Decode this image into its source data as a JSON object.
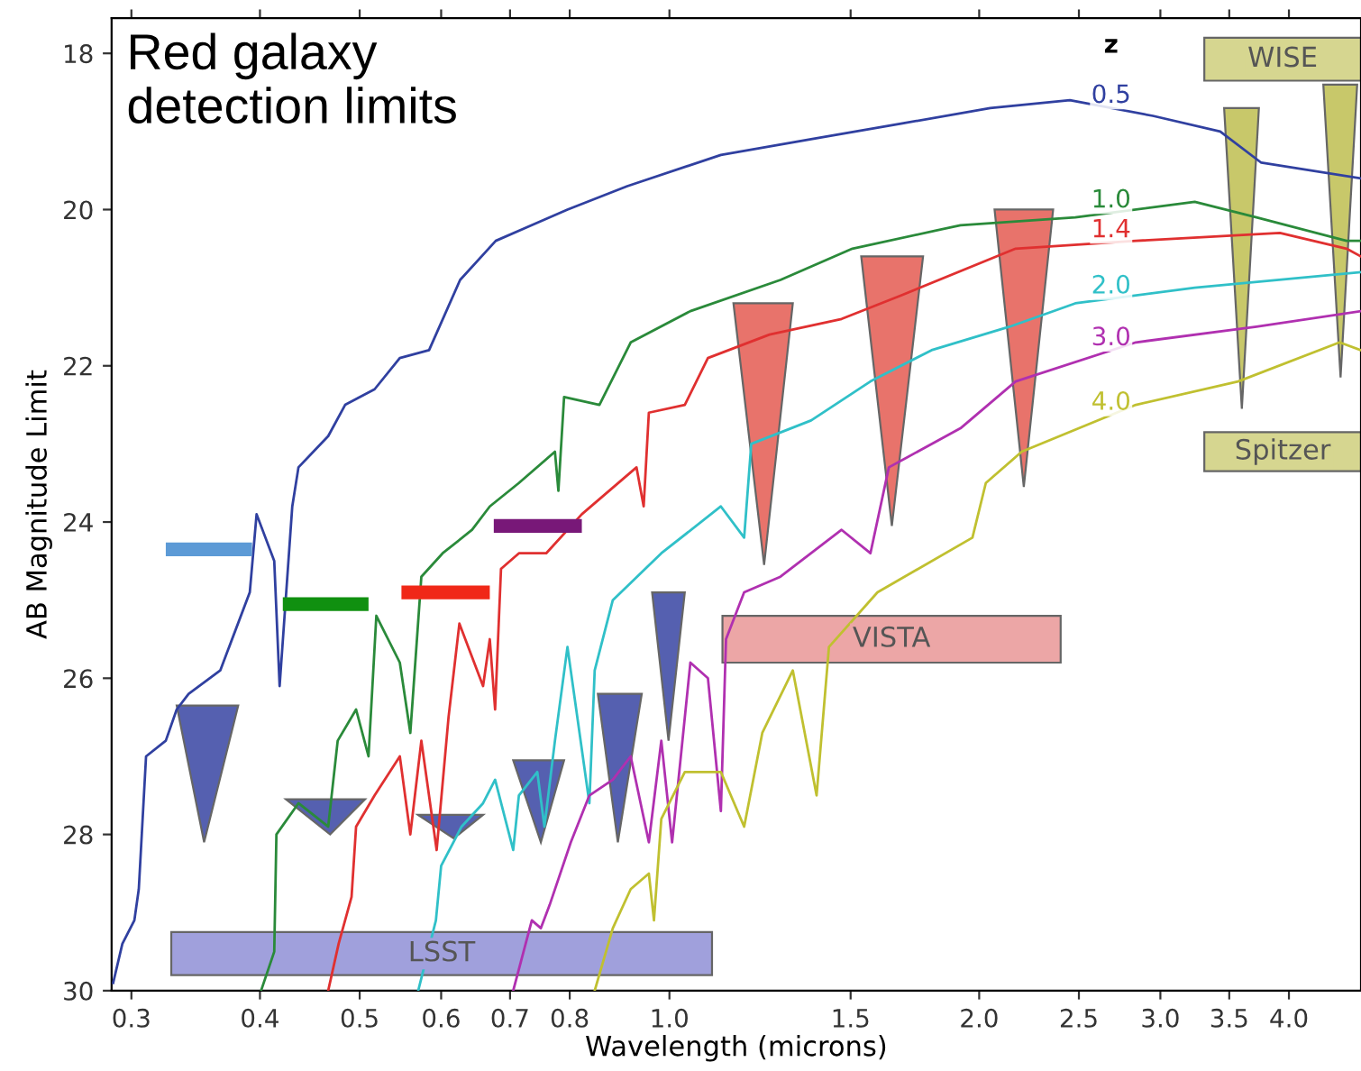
{
  "chart_data": {
    "type": "line",
    "title": "Red galaxy\ndetection limits",
    "xlabel": "Wavelength (microns)",
    "ylabel": "AB Magnitude Limit",
    "log": "x",
    "xlim": [
      0.287,
      4.7
    ],
    "ylim": [
      30,
      17.55
    ],
    "xticks": [
      0.3,
      0.4,
      0.5,
      0.6,
      0.7,
      0.8,
      {
        "value": 1,
        "label": "1.0"
      },
      1.5,
      {
        "value": 2,
        "label": "2.0"
      },
      2.5,
      {
        "value": 3,
        "label": "3.0"
      },
      3.5,
      {
        "value": 4,
        "label": "4.0"
      }
    ],
    "yticks": [
      18,
      20,
      22,
      24,
      26,
      28,
      30
    ],
    "grid": false,
    "marker": "none",
    "line_style": "solid",
    "legend_title": "z",
    "series": [
      {
        "type": "area",
        "name": "LSST",
        "color": "#a0a0dc",
        "x": [
          0.328,
          1.1,
          1.1,
          0.328
        ],
        "values": [
          29.25,
          29.25,
          29.8,
          29.8
        ]
      },
      {
        "type": "area",
        "name": "VISTA",
        "color": "#eca6a6",
        "x": [
          1.126,
          2.4,
          2.4,
          1.126
        ],
        "values": [
          25.2,
          25.2,
          25.8,
          25.8
        ]
      },
      {
        "type": "area",
        "name": "WISE",
        "color": "#d6d690",
        "x": [
          3.31,
          4.7,
          4.7,
          3.31
        ],
        "values": [
          17.8,
          17.8,
          18.35,
          18.35
        ]
      },
      {
        "type": "area",
        "name": "Spitzer",
        "color": "#d6d690",
        "x": [
          3.31,
          4.7,
          4.7,
          3.31
        ],
        "values": [
          22.85,
          22.85,
          23.35,
          23.35
        ]
      },
      {
        "name": "0.5",
        "color": "#3040a0",
        "x": [
          0.288,
          0.294,
          0.302,
          0.305,
          0.31,
          0.324,
          0.332,
          0.341,
          0.366,
          0.391,
          0.397,
          0.413,
          0.418,
          0.43,
          0.436,
          0.466,
          0.484,
          0.517,
          0.547,
          0.584,
          0.626,
          0.678,
          0.796,
          0.91,
          1.122,
          1.373,
          1.679,
          2.05,
          2.45,
          2.95,
          3.43,
          3.76,
          4.7
        ],
        "values": [
          29.9,
          29.4,
          29.1,
          28.7,
          27.0,
          26.8,
          26.4,
          26.2,
          25.9,
          24.9,
          23.9,
          24.5,
          26.1,
          23.8,
          23.3,
          22.9,
          22.5,
          22.3,
          21.9,
          21.8,
          20.9,
          20.4,
          20.0,
          19.7,
          19.3,
          19.1,
          18.9,
          18.7,
          18.6,
          18.8,
          19.0,
          19.4,
          19.6
        ]
      },
      {
        "name": "1.0",
        "color": "#2a8a3a",
        "x": [
          0.401,
          0.413,
          0.415,
          0.436,
          0.466,
          0.476,
          0.496,
          0.51,
          0.519,
          0.547,
          0.56,
          0.574,
          0.602,
          0.643,
          0.669,
          0.714,
          0.774,
          0.78,
          0.79,
          0.855,
          0.917,
          1.048,
          1.282,
          1.506,
          1.918,
          2.48,
          3.24,
          3.72,
          4.55,
          4.7
        ],
        "values": [
          30.0,
          29.5,
          28.0,
          27.6,
          27.9,
          26.8,
          26.4,
          27.0,
          25.2,
          25.8,
          26.7,
          24.7,
          24.4,
          24.1,
          23.8,
          23.5,
          23.1,
          23.6,
          22.4,
          22.5,
          21.7,
          21.3,
          20.9,
          20.5,
          20.2,
          20.1,
          19.9,
          20.1,
          20.4,
          20.4
        ]
      },
      {
        "name": "1.4",
        "color": "#e03030",
        "x": [
          0.466,
          0.477,
          0.491,
          0.496,
          0.517,
          0.547,
          0.56,
          0.574,
          0.594,
          0.61,
          0.625,
          0.659,
          0.669,
          0.677,
          0.686,
          0.714,
          0.759,
          0.822,
          0.929,
          0.944,
          0.955,
          1.035,
          1.09,
          1.251,
          1.47,
          1.679,
          2.17,
          2.84,
          3.92,
          4.55,
          4.7
        ],
        "values": [
          30.0,
          29.4,
          28.8,
          27.9,
          27.5,
          27.0,
          28.0,
          26.8,
          28.2,
          26.5,
          25.3,
          26.1,
          25.5,
          26.4,
          24.6,
          24.4,
          24.4,
          23.9,
          23.3,
          23.8,
          22.6,
          22.5,
          21.9,
          21.6,
          21.4,
          21.1,
          20.5,
          20.4,
          20.3,
          20.5,
          20.6
        ]
      },
      {
        "name": "2.0",
        "color": "#30c0c8",
        "x": [
          0.57,
          0.593,
          0.6,
          0.628,
          0.659,
          0.677,
          0.705,
          0.714,
          0.744,
          0.756,
          0.774,
          0.796,
          0.836,
          0.846,
          0.881,
          0.982,
          1.122,
          1.182,
          1.201,
          1.373,
          1.568,
          1.798,
          2.14,
          2.48,
          3.24,
          4.7
        ],
        "values": [
          30.0,
          29.1,
          28.4,
          27.9,
          27.6,
          27.3,
          28.2,
          27.5,
          27.2,
          27.9,
          26.8,
          25.6,
          27.6,
          25.9,
          25.0,
          24.4,
          23.8,
          24.2,
          23.0,
          22.7,
          22.2,
          21.8,
          21.5,
          21.2,
          21.0,
          20.8
        ]
      },
      {
        "name": "3.0",
        "color": "#b030b0",
        "x": [
          0.705,
          0.735,
          0.75,
          0.765,
          0.802,
          0.836,
          0.881,
          0.917,
          0.955,
          0.982,
          1.006,
          1.048,
          1.09,
          1.122,
          1.135,
          1.182,
          1.282,
          1.47,
          1.568,
          1.634,
          1.918,
          2.17,
          2.84,
          3.72,
          4.7
        ],
        "values": [
          30.0,
          29.1,
          29.2,
          28.9,
          28.1,
          27.5,
          27.3,
          27.0,
          28.1,
          26.8,
          28.1,
          25.8,
          26.0,
          27.7,
          25.5,
          24.9,
          24.7,
          24.1,
          24.4,
          23.3,
          22.8,
          22.2,
          21.7,
          21.5,
          21.3
        ]
      },
      {
        "name": "4.0",
        "color": "#c0c030",
        "x": [
          0.846,
          0.881,
          0.917,
          0.955,
          0.966,
          0.982,
          1.035,
          1.122,
          1.182,
          1.231,
          1.318,
          1.39,
          1.429,
          1.593,
          1.97,
          2.03,
          2.2,
          2.84,
          3.57,
          4.48,
          4.7
        ],
        "values": [
          30.0,
          29.2,
          28.7,
          28.5,
          29.1,
          27.8,
          27.2,
          27.2,
          27.9,
          26.7,
          25.9,
          27.5,
          25.6,
          24.9,
          24.2,
          23.5,
          23.1,
          22.5,
          22.2,
          21.7,
          21.8
        ]
      },
      {
        "type": "step",
        "color": "#5c9ad6",
        "x": [
          0.324,
          0.393
        ],
        "values": [
          24.35,
          24.35
        ]
      },
      {
        "type": "step",
        "color": "#109010",
        "x": [
          0.421,
          0.51
        ],
        "values": [
          25.05,
          25.05
        ]
      },
      {
        "type": "step",
        "color": "#f02818",
        "x": [
          0.549,
          0.669
        ],
        "values": [
          24.9,
          24.9
        ]
      },
      {
        "type": "step",
        "color": "#781878",
        "x": [
          0.675,
          0.822
        ],
        "values": [
          24.05,
          24.05
        ]
      },
      {
        "type": "area",
        "color": "#5560b0",
        "x": [
          0.332,
          0.353,
          0.381
        ],
        "values": [
          26.35,
          28.1,
          26.35
        ]
      },
      {
        "type": "area",
        "color": "#5560b0",
        "x": [
          0.424,
          0.468,
          0.506
        ],
        "values": [
          27.55,
          28.0,
          27.55
        ]
      },
      {
        "type": "area",
        "color": "#5560b0",
        "x": [
          0.57,
          0.617,
          0.659
        ],
        "values": [
          27.75,
          28.05,
          27.75
        ]
      },
      {
        "type": "area",
        "color": "#5560b0",
        "x": [
          0.705,
          0.75,
          0.79
        ],
        "values": [
          27.05,
          28.1,
          27.05
        ]
      },
      {
        "type": "area",
        "color": "#5560b0",
        "x": [
          0.852,
          0.891,
          0.94
        ],
        "values": [
          26.2,
          28.1,
          26.2
        ]
      },
      {
        "type": "area",
        "color": "#5560b0",
        "x": [
          0.962,
          0.998,
          1.035
        ],
        "values": [
          24.9,
          26.8,
          24.9
        ]
      },
      {
        "type": "area",
        "color": "#e8736b",
        "x": [
          1.154,
          1.236,
          1.318
        ],
        "values": [
          21.2,
          24.55,
          21.2
        ]
      },
      {
        "type": "area",
        "color": "#e8736b",
        "x": [
          1.536,
          1.645,
          1.764
        ],
        "values": [
          20.6,
          24.05,
          20.6
        ]
      },
      {
        "type": "area",
        "color": "#e8736b",
        "x": [
          2.07,
          2.21,
          2.36
        ],
        "values": [
          20.0,
          23.55,
          20.0
        ]
      },
      {
        "type": "area",
        "color": "#c8c86a",
        "x": [
          3.46,
          3.6,
          3.74
        ],
        "values": [
          18.7,
          22.55,
          18.7
        ]
      },
      {
        "type": "area",
        "color": "#c8c86a",
        "x": [
          4.32,
          4.49,
          4.66
        ],
        "values": [
          18.4,
          22.15,
          18.4
        ]
      }
    ]
  }
}
